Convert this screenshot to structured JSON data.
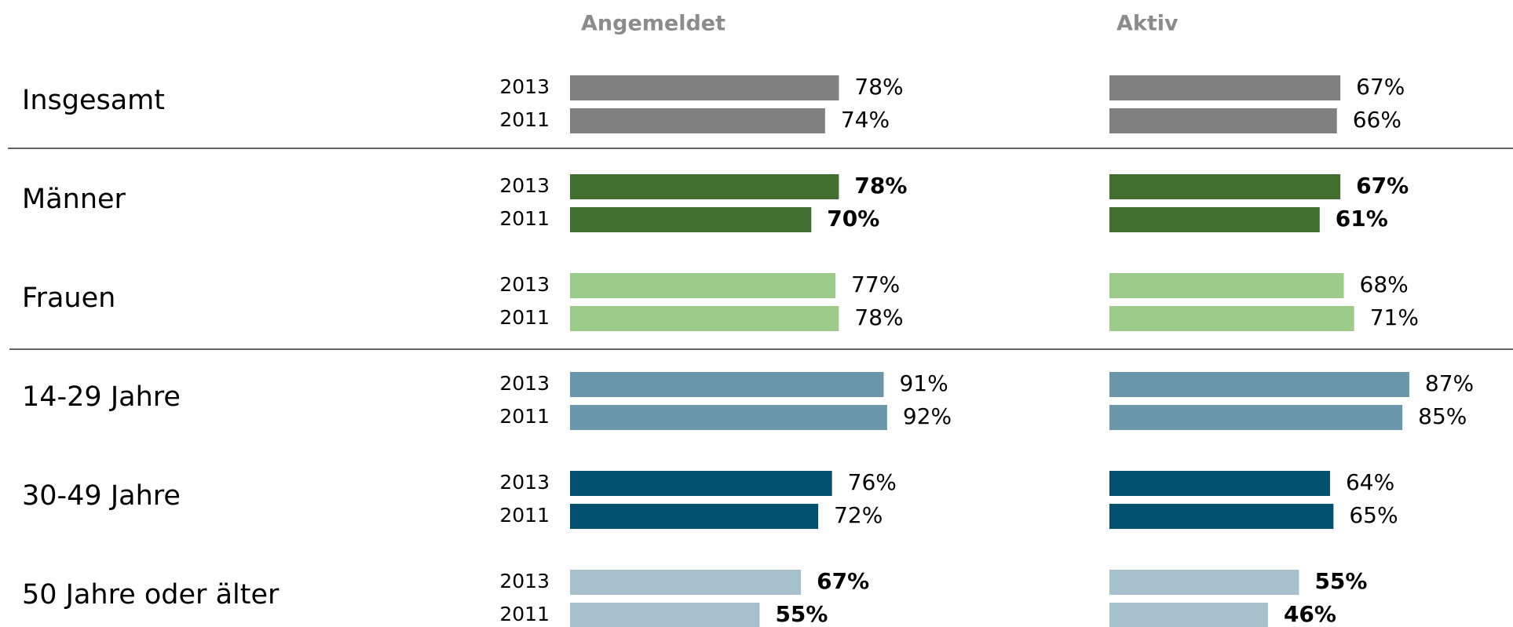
{
  "chart_data": {
    "type": "bar",
    "categories": [
      "Insgesamt",
      "Männer",
      "Frauen",
      "14-29 Jahre",
      "30-49 Jahre",
      "50 Jahre oder älter"
    ],
    "category_colors": [
      "#808080",
      "#426e2f",
      "#9dcc8a",
      "#6a97aa",
      "#00506e",
      "#a6c1cc"
    ],
    "bold_labels": [
      false,
      true,
      false,
      false,
      false,
      true
    ],
    "xlim": [
      0,
      100
    ],
    "panels": [
      {
        "title": "Angemeldet",
        "series": [
          {
            "name": "2013",
            "values": [
              78,
              78,
              77,
              91,
              76,
              67
            ],
            "value_labels": [
              "78%",
              "78%",
              "77%",
              "91%",
              "76%",
              "67%"
            ]
          },
          {
            "name": "2011",
            "values": [
              74,
              70,
              78,
              92,
              72,
              55
            ],
            "value_labels": [
              "74%",
              "70%",
              "78%",
              "92%",
              "72%",
              "55%"
            ]
          }
        ]
      },
      {
        "title": "Aktiv",
        "series": [
          {
            "name": "2013",
            "values": [
              67,
              67,
              68,
              87,
              64,
              55
            ],
            "value_labels": [
              "67%",
              "67%",
              "68%",
              "87%",
              "64%",
              "55%"
            ]
          },
          {
            "name": "2011",
            "values": [
              66,
              61,
              71,
              85,
              65,
              46
            ],
            "value_labels": [
              "66%",
              "61%",
              "71%",
              "85%",
              "65%",
              "46%"
            ]
          }
        ]
      }
    ]
  }
}
